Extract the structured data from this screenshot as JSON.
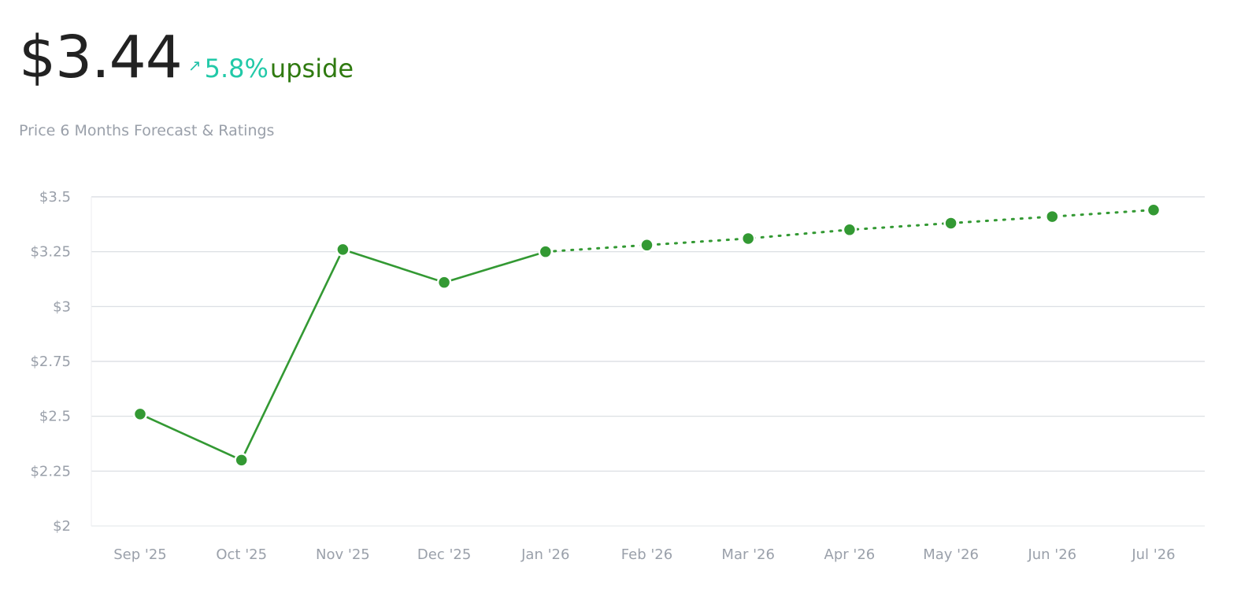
{
  "header": {
    "price": "$3.44",
    "arrow_icon": "arrow-up-right-icon",
    "change_pct": "5.8%",
    "change_label": "upside",
    "subtitle": "Price 6 Months Forecast & Ratings"
  },
  "colors": {
    "line": "#339933",
    "grid": "#d7dbe0",
    "tick": "#9aa0aa",
    "pct": "#22c9a8",
    "upside": "#2f7a10"
  },
  "chart_data": {
    "type": "line",
    "categories": [
      "Sep '25",
      "Oct '25",
      "Nov '25",
      "Dec '25",
      "Jan '26",
      "Feb '26",
      "Mar '26",
      "Apr '26",
      "May '26",
      "Jun '26",
      "Jul '26"
    ],
    "series": [
      {
        "values": [
          2.51,
          2.3,
          3.26,
          3.11,
          3.25,
          null,
          null,
          null,
          null,
          null,
          null
        ],
        "style": "solid"
      },
      {
        "values": [
          null,
          null,
          null,
          null,
          3.25,
          3.28,
          3.31,
          3.35,
          3.38,
          3.41,
          3.44
        ],
        "style": "dotted"
      }
    ],
    "yticks": [
      2,
      2.25,
      2.5,
      2.75,
      3,
      3.25,
      3.5
    ],
    "ytick_labels": [
      "$2",
      "$2.25",
      "$2.5",
      "$2.75",
      "$3",
      "$3.25",
      "$3.5"
    ],
    "ylim": [
      2,
      3.5
    ],
    "grid": true,
    "legend": false,
    "title": "",
    "xlabel": "",
    "ylabel": ""
  }
}
